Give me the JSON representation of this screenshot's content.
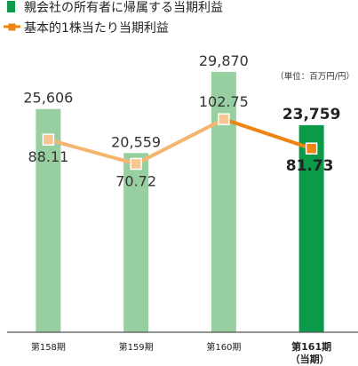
{
  "chart_data": {
    "type": "bar+line",
    "categories": [
      "第158期",
      "第159期",
      "第160期",
      "第161期"
    ],
    "category_notes": [
      "",
      "",
      "",
      "（当期）"
    ],
    "current_index": 3,
    "unit": "（単位：百万円/円）",
    "legend_position": "top-left",
    "grid": false,
    "series": [
      {
        "name": "親会社の所有者に帰属する当期利益",
        "type": "bar",
        "values": [
          25606,
          20559,
          29870,
          23759
        ],
        "value_labels": [
          "25,606",
          "20,559",
          "29,870",
          "23,759"
        ],
        "color": "#97cfa0",
        "current_color": "#0a9a49",
        "ylim": [
          0,
          32000
        ]
      },
      {
        "name": "基本的1株当たり当期利益",
        "type": "line",
        "values": [
          88.11,
          70.72,
          102.75,
          81.73
        ],
        "value_labels": [
          "88.11",
          "70.72",
          "102.75",
          "81.73"
        ],
        "color": "#f5b56e",
        "current_color": "#ee8411",
        "ylim": [
          -50,
          150
        ]
      }
    ]
  }
}
